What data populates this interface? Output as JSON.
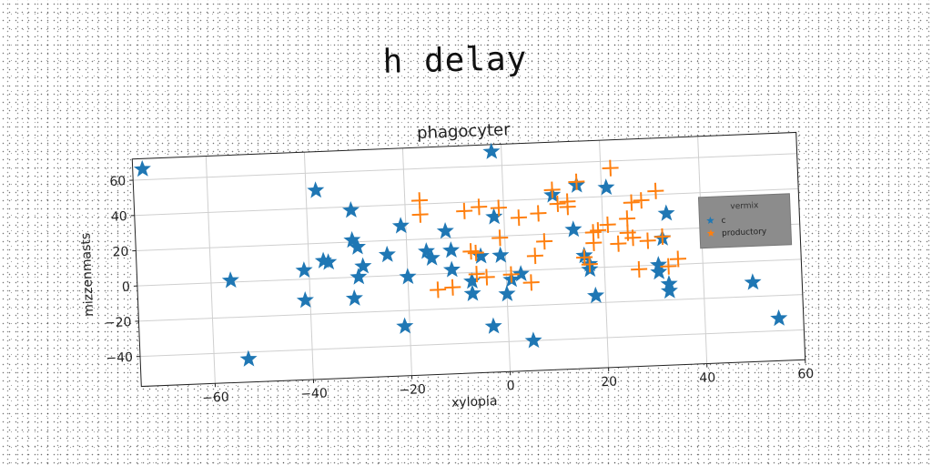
{
  "suptitle": "h delay",
  "chart_data": {
    "type": "scatter",
    "title": "phagocyter",
    "xlabel": "xylopia",
    "ylabel": "mizzenmasts",
    "xlim": [
      -75,
      60
    ],
    "ylim": [
      -57,
      72
    ],
    "xticks": [
      -60,
      -40,
      -20,
      0,
      20,
      40,
      60
    ],
    "yticks": [
      -40,
      -20,
      0,
      20,
      40,
      60
    ],
    "grid": true,
    "legend": {
      "title": "vermix",
      "placement": "right"
    },
    "series": [
      {
        "name": "c",
        "marker": "star",
        "color": "#1f77b4",
        "points": [
          [
            -73,
            66
          ],
          [
            -56,
            1
          ],
          [
            -53,
            -44
          ],
          [
            -38,
            50
          ],
          [
            -41,
            5
          ],
          [
            -41,
            -12
          ],
          [
            -37,
            10
          ],
          [
            -36,
            9
          ],
          [
            -31,
            38
          ],
          [
            -31,
            21
          ],
          [
            -30,
            17
          ],
          [
            -30,
            0
          ],
          [
            -31,
            -12
          ],
          [
            -29,
            6
          ],
          [
            -24,
            12
          ],
          [
            -21,
            28
          ],
          [
            -20,
            -1
          ],
          [
            -21,
            -29
          ],
          [
            -16,
            13
          ],
          [
            -15,
            9
          ],
          [
            -12,
            24
          ],
          [
            -11,
            13
          ],
          [
            -11,
            2
          ],
          [
            -7,
            -5
          ],
          [
            -7,
            -12
          ],
          [
            -5,
            9
          ],
          [
            -3,
            -31
          ],
          [
            -2,
            68
          ],
          [
            -2,
            31
          ],
          [
            -1,
            9
          ],
          [
            0,
            -13
          ],
          [
            1,
            -5
          ],
          [
            3,
            -2
          ],
          [
            5,
            -40
          ],
          [
            10,
            42
          ],
          [
            14,
            22
          ],
          [
            15,
            47
          ],
          [
            16,
            7
          ],
          [
            17,
            2
          ],
          [
            17,
            -1
          ],
          [
            18,
            -16
          ],
          [
            21,
            45
          ],
          [
            31,
            0
          ],
          [
            31,
            -4
          ],
          [
            32,
            15
          ],
          [
            33,
            29
          ],
          [
            33,
            -11
          ],
          [
            33,
            -15
          ],
          [
            50,
            -12
          ],
          [
            55,
            -33
          ]
        ]
      },
      {
        "name": "productory",
        "marker": "plus",
        "color": "#ff7f0e",
        "points": [
          [
            -17,
            42
          ],
          [
            -17,
            34
          ],
          [
            -14,
            -9
          ],
          [
            -11,
            -8
          ],
          [
            -8,
            35
          ],
          [
            -7,
            12
          ],
          [
            -6,
            11
          ],
          [
            -6,
            -1
          ],
          [
            -4,
            -3
          ],
          [
            -5,
            37
          ],
          [
            -1,
            36
          ],
          [
            -1,
            19
          ],
          [
            1,
            -2
          ],
          [
            5,
            -7
          ],
          [
            3,
            30
          ],
          [
            7,
            32
          ],
          [
            6,
            8
          ],
          [
            8,
            16
          ],
          [
            10,
            45
          ],
          [
            11,
            37
          ],
          [
            13,
            38
          ],
          [
            13,
            35
          ],
          [
            15,
            49
          ],
          [
            16,
            6
          ],
          [
            17,
            2
          ],
          [
            18,
            20
          ],
          [
            18,
            14
          ],
          [
            19,
            21
          ],
          [
            21,
            24
          ],
          [
            22,
            56
          ],
          [
            23,
            13
          ],
          [
            25,
            19
          ],
          [
            25,
            27
          ],
          [
            26,
            36
          ],
          [
            26,
            16
          ],
          [
            27,
            -2
          ],
          [
            28,
            37
          ],
          [
            29,
            14
          ],
          [
            31,
            42
          ],
          [
            32,
            16
          ],
          [
            33,
            -1
          ],
          [
            35,
            3
          ]
        ]
      }
    ]
  }
}
